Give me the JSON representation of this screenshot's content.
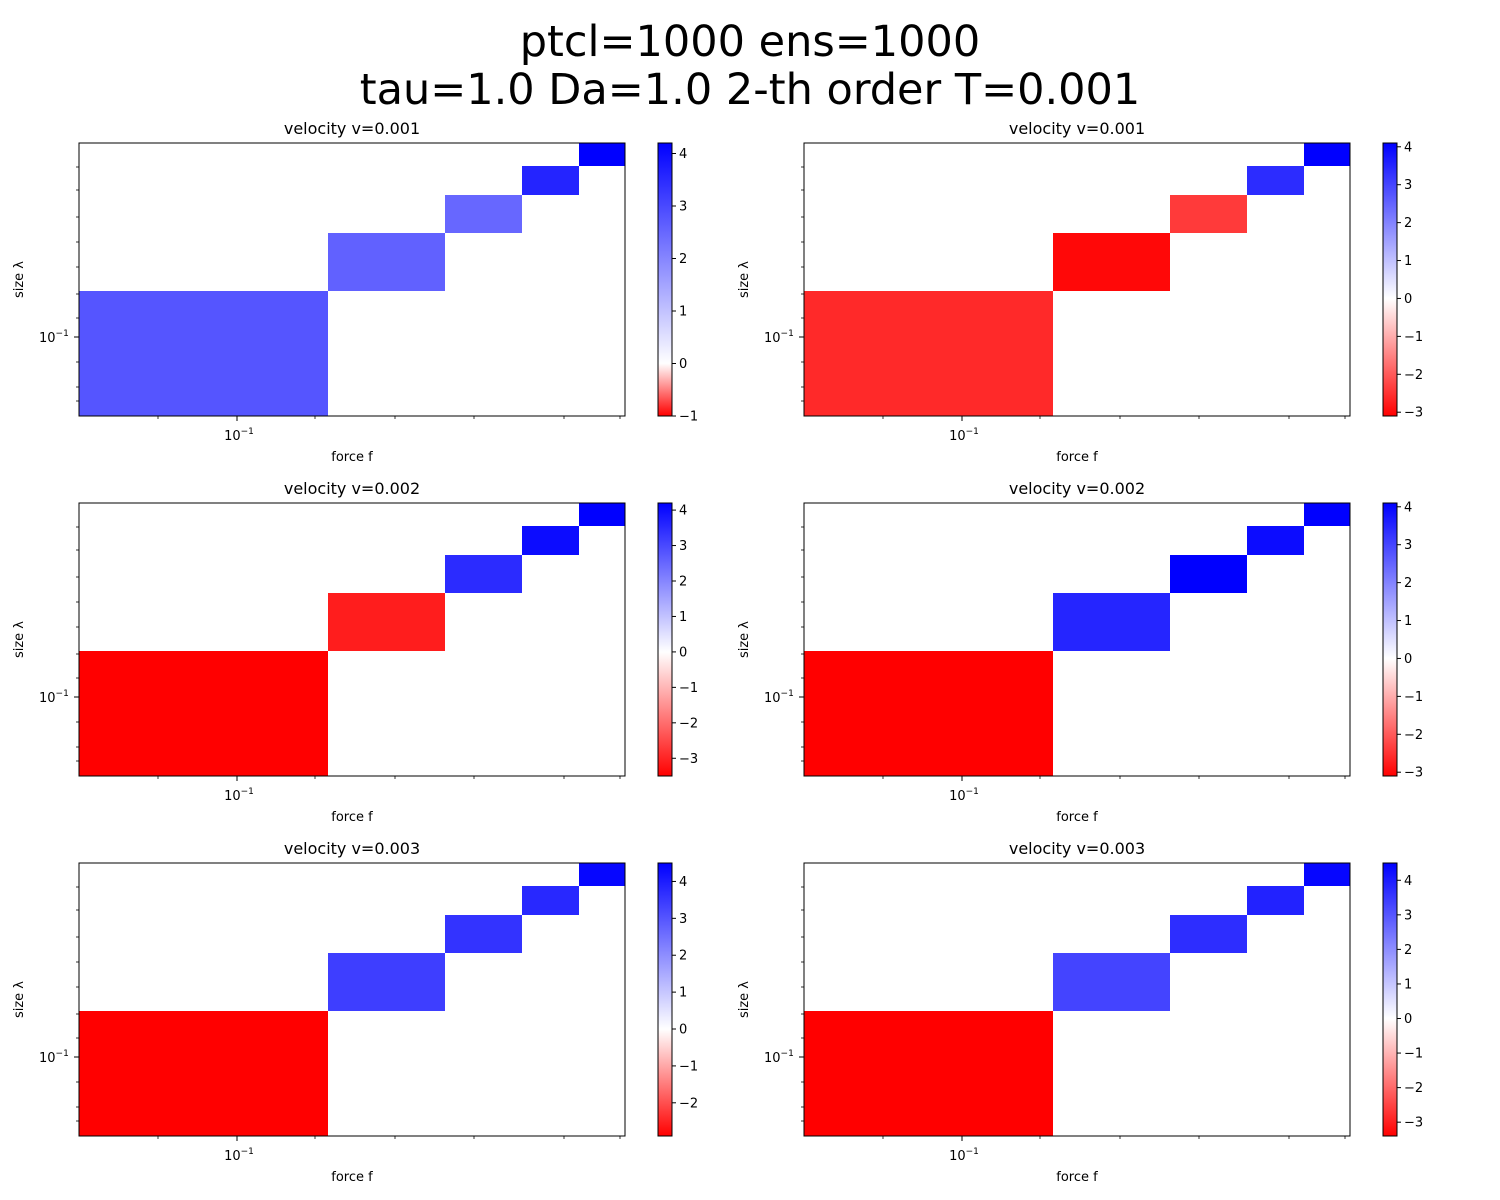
{
  "figure": {
    "title_line1": "ptcl=1000 ens=1000",
    "title_line2": "tau=1.0 Da=1.0 2-th order T=0.001"
  },
  "colors": {
    "negative": "#ff0000",
    "zero": "#ffffff",
    "positive": "#0000ff",
    "empty": "#ffffff"
  },
  "chart_data": [
    {
      "type": "heatmap",
      "title": "velocity v=0.001",
      "xlabel": "force f",
      "ylabel": "size λ",
      "xscale": "log",
      "yscale": "log",
      "x_tick_labels": [
        "10",
        "−1"
      ],
      "y_tick_labels": [
        "10",
        "−1"
      ],
      "cells": [
        {
          "value": 2.8
        },
        {
          "value": 2.6
        },
        {
          "value": 2.5
        },
        {
          "value": 3.6
        },
        {
          "value": 4.2
        }
      ],
      "colorbar": {
        "min": -1.0,
        "max": 4.2,
        "ticks": [
          -1,
          0,
          1,
          2,
          3,
          4
        ]
      }
    },
    {
      "type": "heatmap",
      "title": "velocity v=0.001",
      "xlabel": "force f",
      "ylabel": "size λ",
      "xscale": "log",
      "yscale": "log",
      "x_tick_labels": [
        "10",
        "−1"
      ],
      "y_tick_labels": [
        "10",
        "−1"
      ],
      "cells": [
        {
          "value": -2.6
        },
        {
          "value": -3.0
        },
        {
          "value": -2.4
        },
        {
          "value": 3.4
        },
        {
          "value": 4.1
        }
      ],
      "colorbar": {
        "min": -3.1,
        "max": 4.1,
        "ticks": [
          -3,
          -2,
          -1,
          0,
          1,
          2,
          3,
          4
        ]
      }
    },
    {
      "type": "heatmap",
      "title": "velocity v=0.002",
      "xlabel": "force f",
      "ylabel": "size λ",
      "xscale": "log",
      "yscale": "log",
      "x_tick_labels": [
        "10",
        "−1"
      ],
      "y_tick_labels": [
        "10",
        "−1"
      ],
      "cells": [
        {
          "value": -3.5
        },
        {
          "value": -3.1
        },
        {
          "value": 3.5
        },
        {
          "value": 4.0
        },
        {
          "value": 4.2
        }
      ],
      "colorbar": {
        "min": -3.5,
        "max": 4.2,
        "ticks": [
          -3,
          -2,
          -1,
          0,
          1,
          2,
          3,
          4
        ]
      }
    },
    {
      "type": "heatmap",
      "title": "velocity v=0.002",
      "xlabel": "force f",
      "ylabel": "size λ",
      "xscale": "log",
      "yscale": "log",
      "x_tick_labels": [
        "10",
        "−1"
      ],
      "y_tick_labels": [
        "10",
        "−1"
      ],
      "cells": [
        {
          "value": -3.1
        },
        {
          "value": 3.5
        },
        {
          "value": 4.1
        },
        {
          "value": 3.9
        },
        {
          "value": 4.1
        }
      ],
      "colorbar": {
        "min": -3.1,
        "max": 4.1,
        "ticks": [
          -3,
          -2,
          -1,
          0,
          1,
          2,
          3,
          4
        ]
      }
    },
    {
      "type": "heatmap",
      "title": "velocity v=0.003",
      "xlabel": "force f",
      "ylabel": "size λ",
      "xscale": "log",
      "yscale": "log",
      "x_tick_labels": [
        "10",
        "−1"
      ],
      "y_tick_labels": [
        "10",
        "−1"
      ],
      "cells": [
        {
          "value": -2.9
        },
        {
          "value": 3.4
        },
        {
          "value": 3.6
        },
        {
          "value": 3.8
        },
        {
          "value": 4.4
        }
      ],
      "colorbar": {
        "min": -2.9,
        "max": 4.5,
        "ticks": [
          -2,
          -1,
          0,
          1,
          2,
          3,
          4
        ]
      }
    },
    {
      "type": "heatmap",
      "title": "velocity v=0.003",
      "xlabel": "force f",
      "ylabel": "size λ",
      "xscale": "log",
      "yscale": "log",
      "x_tick_labels": [
        "10",
        "−1"
      ],
      "y_tick_labels": [
        "10",
        "−1"
      ],
      "cells": [
        {
          "value": -3.4
        },
        {
          "value": 3.3
        },
        {
          "value": 3.7
        },
        {
          "value": 3.9
        },
        {
          "value": 4.4
        }
      ],
      "colorbar": {
        "min": -3.4,
        "max": 4.5,
        "ticks": [
          -3,
          -2,
          -1,
          0,
          1,
          2,
          3,
          4
        ]
      }
    }
  ]
}
